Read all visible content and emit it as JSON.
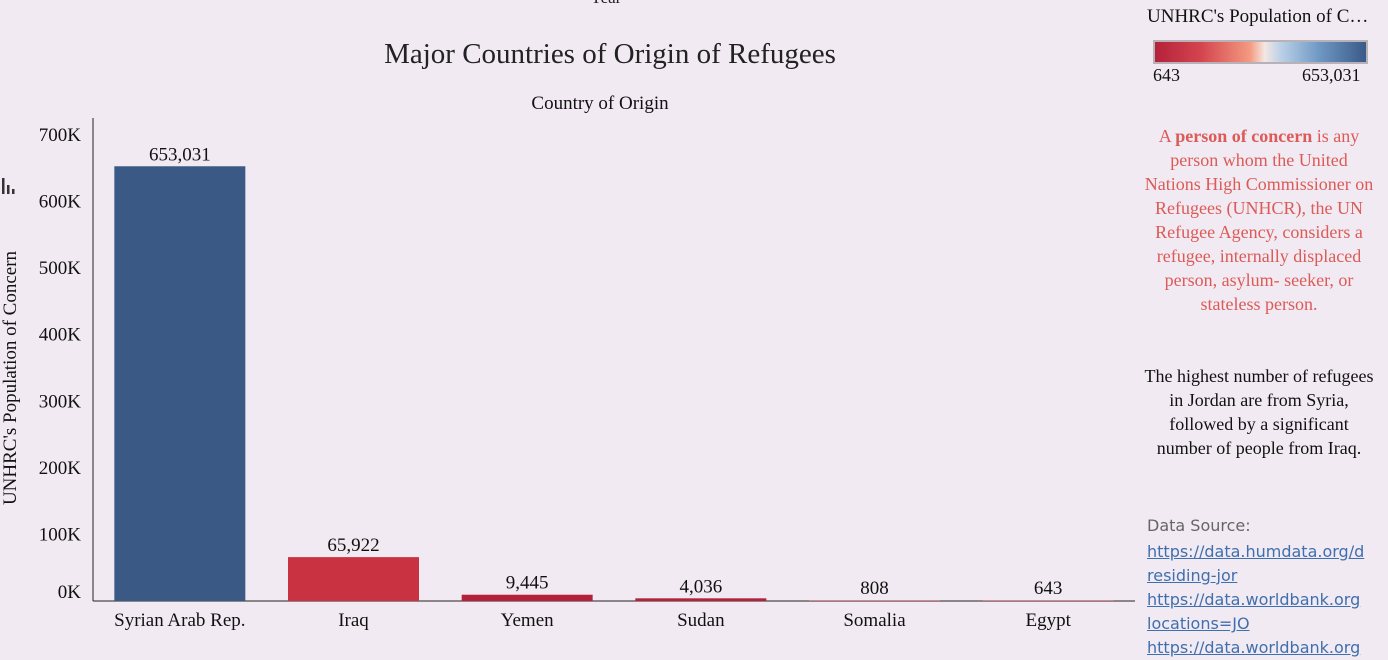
{
  "header": {
    "top_clipped_label": "Year"
  },
  "legend": {
    "title": "UNHRC's Population of C…",
    "min_label": "643",
    "max_label": "653,031"
  },
  "note": {
    "prefix": "A ",
    "bold": "person of concern",
    "rest": " is any person whom the United Nations High Commissioner on Refugees (UNHCR), the UN Refugee Agency, considers a refugee, internally displaced person, asylum- seeker, or stateless person."
  },
  "insight": "The highest number of refugees in Jordan are from Syria, followed by a significant number of people from Iraq.",
  "source": {
    "label": "Data Source:",
    "links": [
      "https://data.humdata.org/d",
      "residing-jor",
      "https://data.worldbank.org",
      "locations=JO",
      "https://data.worldbank.org"
    ]
  },
  "chart_data": {
    "type": "bar",
    "title": "Major Countries of Origin of Refugees",
    "subtitle": "Country of Origin",
    "ylabel": "UNHRC's Population of Concern",
    "ylim": [
      0,
      700000
    ],
    "yticks": [
      0,
      100000,
      200000,
      300000,
      400000,
      500000,
      600000,
      700000
    ],
    "ytick_labels": [
      "0K",
      "100K",
      "200K",
      "300K",
      "400K",
      "500K",
      "600K",
      "700K"
    ],
    "categories": [
      "Syrian Arab Rep.",
      "Iraq",
      "Yemen",
      "Sudan",
      "Somalia",
      "Egypt"
    ],
    "values": [
      653031,
      65922,
      9445,
      4036,
      808,
      643
    ],
    "data_labels": [
      "653,031",
      "65,922",
      "9,445",
      "4,036",
      "808",
      "643"
    ],
    "colors": [
      "#3a5a85",
      "#c93341",
      "#b5213a",
      "#b5213a",
      "#b5213a",
      "#b5213a"
    ],
    "axis_color": "#222222",
    "grid": false
  }
}
